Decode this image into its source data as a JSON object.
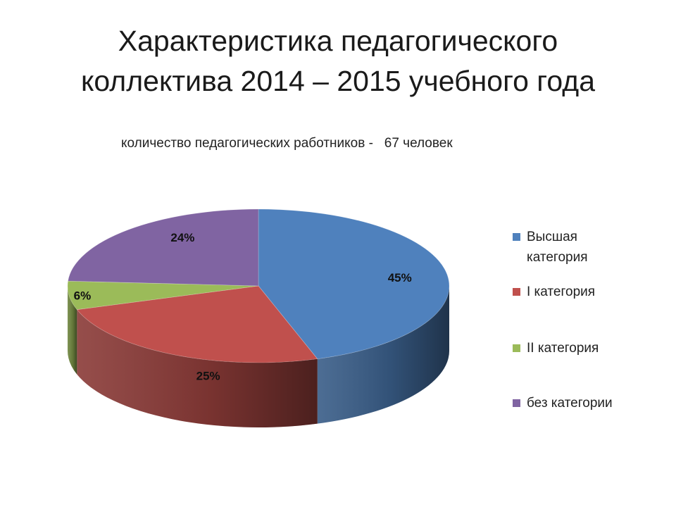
{
  "title": {
    "line1": "Характеристика педагогического",
    "line2": "коллектива 2014 – 2015 учебного года"
  },
  "subtitle": "количество педагогических работников -   67 человек",
  "chart_data": {
    "type": "pie",
    "style": "3d",
    "labels": [
      "Высшая категория",
      "I категория",
      "II категория",
      "без категории"
    ],
    "values": [
      45,
      25,
      6,
      24
    ],
    "data_labels": [
      "45%",
      "25%",
      "6%",
      "24%"
    ],
    "colors": [
      "#4F81BD",
      "#C0504D",
      "#9BBB59",
      "#8064A2"
    ],
    "legend_position": "right",
    "legend": [
      "Высшая категория",
      "I категория",
      "II категория",
      "без категории"
    ]
  }
}
